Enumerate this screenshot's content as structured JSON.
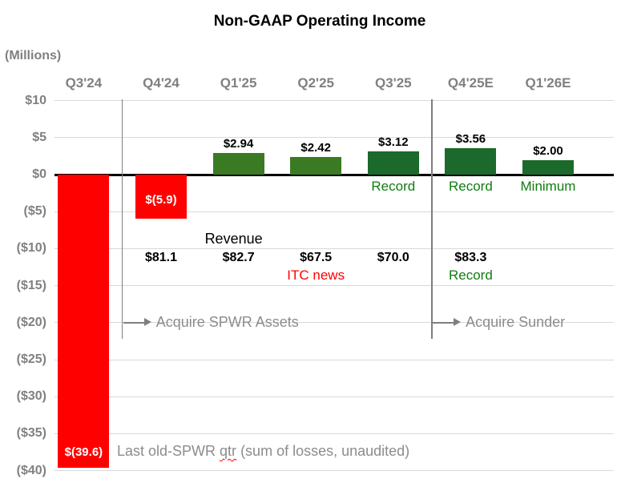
{
  "colors": {
    "loss_red": "#ff0000",
    "gain_green_mid": "#3a7a23",
    "gain_green_dark": "#1b6a2b",
    "note_green": "#107d10",
    "note_red": "#ff0000",
    "axis_gray": "#808080",
    "annotation_gray": "#8c8c8c",
    "divider_gray": "#7f7f7f",
    "gridline": "#d9d9d9",
    "zero_line": "#000000"
  },
  "chart_data": {
    "type": "bar",
    "title": "Non-GAAP Operating Income",
    "units_label": "(Millions)",
    "categories": [
      "Q3'24",
      "Q4'24",
      "Q1'25",
      "Q2'25",
      "Q3'25",
      "Q4'25E",
      "Q1'26E"
    ],
    "values": [
      -39.6,
      -5.9,
      2.94,
      2.42,
      3.12,
      3.56,
      2.0
    ],
    "bar_labels": [
      "$(39.6)",
      "$(5.9)",
      "$2.94",
      "$2.42",
      "$3.12",
      "$3.56",
      "$2.00"
    ],
    "bar_colors": [
      "#ff0000",
      "#ff0000",
      "#3a7a23",
      "#3a7a23",
      "#1b6a2b",
      "#1b6a2b",
      "#1b6a2b"
    ],
    "bar_notes": [
      "",
      "",
      "",
      "",
      "Record",
      "Record",
      "Minimum"
    ],
    "ylim": [
      -40,
      10
    ],
    "ytick_step": 5,
    "ytick_labels": [
      "$10",
      "$5",
      "$0",
      "($5)",
      "($10)",
      "($15)",
      "($20)",
      "($25)",
      "($30)",
      "($35)",
      "($40)"
    ],
    "grid": true,
    "legend": "none",
    "revenue_row": {
      "label": "Revenue",
      "values": [
        "",
        "$81.1",
        "$82.7",
        "$67.5",
        "$70.0",
        "$83.3",
        ""
      ],
      "notes": [
        "",
        "",
        "",
        "ITC news",
        "",
        "Record",
        ""
      ],
      "note_colors": [
        "",
        "",
        "",
        "#ff0000",
        "",
        "#107d10",
        ""
      ]
    },
    "dividers": [
      {
        "after_index": 0,
        "label": "Acquire SPWR Assets"
      },
      {
        "after_index": 4,
        "label": "Acquire Sunder"
      }
    ],
    "footnote": {
      "prefix": "Last old-SPWR ",
      "flagged_word": "qtr",
      "suffix": " (sum of losses, unaudited)"
    }
  }
}
